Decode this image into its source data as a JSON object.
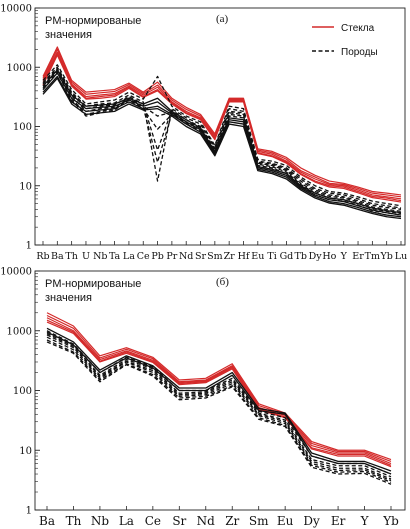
{
  "colors": {
    "glass": "#d42a2a",
    "rock": "#111111",
    "axis": "#222222"
  },
  "chart_data": [
    {
      "type": "line",
      "panel_label": "(а)",
      "ylabel_lines": [
        "PM-нормированые",
        "значения"
      ],
      "yscale": "log",
      "ylim": [
        1,
        10000
      ],
      "yticks": [
        1,
        10,
        100,
        1000,
        10000
      ],
      "ytick_labels": [
        "1",
        "10",
        "100",
        "1000",
        "10000"
      ],
      "categories": [
        "Rb",
        "Ba",
        "Th",
        "U",
        "Nb",
        "Ta",
        "La",
        "Ce",
        "Pb",
        "Pr",
        "Nd",
        "Sr",
        "Sm",
        "Zr",
        "Hf",
        "Eu",
        "Ti",
        "Gd",
        "Tb",
        "Dy",
        "Ho",
        "Y",
        "Er",
        "Tm",
        "Yb",
        "Lu"
      ],
      "legend": {
        "position": "top-right",
        "entries": [
          {
            "label": "Стекла",
            "style": "solid",
            "color": "#d42a2a"
          },
          {
            "label": "Породы",
            "style": "dashed",
            "color": "#111111"
          }
        ]
      },
      "series": [
        {
          "group": "glass",
          "style": "solid",
          "values": [
            700,
            2200,
            600,
            380,
            400,
            420,
            540,
            380,
            560,
            300,
            210,
            160,
            75,
            300,
            300,
            42,
            38,
            30,
            20,
            15,
            12,
            11,
            9.5,
            8,
            7.5,
            7
          ]
        },
        {
          "group": "glass",
          "style": "solid",
          "values": [
            650,
            2000,
            560,
            350,
            370,
            390,
            510,
            360,
            500,
            280,
            195,
            150,
            70,
            290,
            290,
            40,
            36,
            28,
            18,
            14,
            11,
            10.5,
            9,
            7.5,
            7,
            6.5
          ]
        },
        {
          "group": "glass",
          "style": "solid",
          "values": [
            600,
            1800,
            520,
            320,
            340,
            360,
            480,
            340,
            460,
            260,
            180,
            140,
            66,
            280,
            280,
            38,
            34,
            26,
            17,
            13,
            10.5,
            10,
            8.5,
            7,
            6.5,
            6
          ]
        },
        {
          "group": "glass",
          "style": "solid",
          "values": [
            550,
            1700,
            500,
            300,
            320,
            340,
            460,
            320,
            420,
            250,
            170,
            135,
            62,
            270,
            270,
            36,
            32,
            25,
            16,
            12,
            10,
            9.5,
            8,
            6.6,
            6.2,
            5.6
          ]
        },
        {
          "group": "glass",
          "style": "solid",
          "values": [
            500,
            1600,
            480,
            290,
            300,
            320,
            440,
            310,
            400,
            240,
            165,
            130,
            60,
            260,
            260,
            35,
            31,
            24,
            15.5,
            11.5,
            9.5,
            9,
            7.6,
            6.3,
            5.8,
            5.3
          ]
        },
        {
          "group": "rock",
          "style": "dashed",
          "values": [
            600,
            1100,
            420,
            240,
            260,
            280,
            380,
            290,
            700,
            220,
            150,
            120,
            48,
            220,
            200,
            28,
            26,
            22,
            14,
            10,
            8,
            7.5,
            6.5,
            5.5,
            5,
            4.6
          ]
        },
        {
          "group": "rock",
          "style": "dashed",
          "values": [
            550,
            1000,
            380,
            220,
            240,
            250,
            340,
            260,
            12,
            200,
            140,
            110,
            45,
            200,
            180,
            26,
            24,
            20,
            13,
            9,
            7.5,
            7,
            6,
            5,
            4.6,
            4.2
          ]
        },
        {
          "group": "rock",
          "style": "dashed",
          "values": [
            520,
            950,
            360,
            200,
            220,
            230,
            320,
            240,
            40,
            190,
            130,
            100,
            42,
            180,
            170,
            25,
            23,
            19,
            12,
            8.5,
            7,
            6.5,
            5.6,
            4.7,
            4.3,
            4
          ]
        },
        {
          "group": "rock",
          "style": "dashed",
          "values": [
            480,
            900,
            330,
            180,
            200,
            210,
            300,
            220,
            150,
            175,
            120,
            95,
            40,
            170,
            160,
            24,
            22,
            18,
            11,
            8,
            6.6,
            6.2,
            5.3,
            4.4,
            4,
            3.7
          ]
        },
        {
          "group": "rock",
          "style": "dashed",
          "values": [
            450,
            850,
            300,
            160,
            180,
            200,
            290,
            210,
            25,
            165,
            115,
            90,
            38,
            160,
            150,
            23,
            21,
            17,
            10.5,
            7.5,
            6.2,
            5.8,
            5,
            4.1,
            3.7,
            3.4
          ]
        },
        {
          "group": "rock",
          "style": "dashed",
          "values": [
            420,
            800,
            280,
            150,
            170,
            190,
            280,
            200,
            90,
            160,
            110,
            85,
            36,
            150,
            140,
            22,
            20,
            16,
            10,
            7,
            5.8,
            5.5,
            4.7,
            3.8,
            3.5,
            3.2
          ]
        },
        {
          "group": "rock",
          "style": "solid",
          "values": [
            480,
            900,
            340,
            220,
            230,
            240,
            300,
            240,
            300,
            180,
            130,
            95,
            38,
            140,
            130,
            21,
            19,
            16,
            10,
            7.5,
            6.2,
            5.8,
            5,
            4.2,
            3.8,
            3.5
          ]
        },
        {
          "group": "rock",
          "style": "solid",
          "values": [
            420,
            800,
            300,
            200,
            210,
            220,
            280,
            220,
            260,
            170,
            120,
            88,
            36,
            130,
            120,
            20,
            18,
            15,
            9.5,
            7,
            5.8,
            5.4,
            4.6,
            3.9,
            3.5,
            3.2
          ]
        },
        {
          "group": "rock",
          "style": "solid",
          "values": [
            380,
            700,
            260,
            180,
            190,
            200,
            260,
            200,
            220,
            160,
            110,
            80,
            34,
            120,
            110,
            19,
            17,
            14,
            9,
            6.6,
            5.4,
            5,
            4.3,
            3.6,
            3.2,
            3
          ]
        },
        {
          "group": "rock",
          "style": "solid",
          "values": [
            350,
            650,
            240,
            160,
            170,
            180,
            240,
            190,
            200,
            150,
            100,
            75,
            32,
            110,
            100,
            18,
            16,
            13,
            8.5,
            6.2,
            5.1,
            4.7,
            4,
            3.4,
            3,
            2.8
          ]
        }
      ]
    },
    {
      "type": "line",
      "panel_label": "(б)",
      "ylabel_lines": [
        "PM-нормированые",
        "значения"
      ],
      "yscale": "log",
      "ylim": [
        1,
        10000
      ],
      "yticks": [
        1,
        10,
        100,
        1000,
        10000
      ],
      "ytick_labels": [
        "1",
        "10",
        "100",
        "1000",
        "10000"
      ],
      "categories": [
        "Ba",
        "Th",
        "Nb",
        "La",
        "Ce",
        "Sr",
        "Nd",
        "Zr",
        "Sm",
        "Eu",
        "Dy",
        "Er",
        "Y",
        "Yb"
      ],
      "series": [
        {
          "group": "glass",
          "style": "solid",
          "values": [
            2000,
            1200,
            380,
            520,
            360,
            150,
            160,
            280,
            60,
            42,
            14,
            10,
            10,
            7
          ]
        },
        {
          "group": "glass",
          "style": "solid",
          "values": [
            1800,
            1100,
            350,
            490,
            340,
            140,
            150,
            260,
            56,
            40,
            13,
            9.5,
            9.5,
            6.5
          ]
        },
        {
          "group": "glass",
          "style": "solid",
          "values": [
            1650,
            1000,
            330,
            460,
            320,
            135,
            145,
            250,
            52,
            38,
            12,
            9,
            9,
            6
          ]
        },
        {
          "group": "glass",
          "style": "solid",
          "values": [
            1500,
            950,
            310,
            440,
            305,
            130,
            140,
            240,
            50,
            36,
            11,
            8.5,
            8.5,
            5.6
          ]
        },
        {
          "group": "glass",
          "style": "solid",
          "values": [
            1400,
            900,
            300,
            420,
            295,
            125,
            135,
            230,
            48,
            35,
            10.5,
            8,
            8,
            5.3
          ]
        },
        {
          "group": "rock",
          "style": "dashed",
          "values": [
            1000,
            600,
            200,
            360,
            250,
            100,
            100,
            160,
            45,
            35,
            8,
            6,
            6,
            4
          ]
        },
        {
          "group": "rock",
          "style": "dashed",
          "values": [
            900,
            550,
            180,
            330,
            230,
            90,
            95,
            150,
            42,
            32,
            7,
            5.5,
            5.5,
            3.6
          ]
        },
        {
          "group": "rock",
          "style": "dashed",
          "values": [
            850,
            520,
            170,
            310,
            215,
            85,
            90,
            140,
            40,
            30,
            6.5,
            5,
            5,
            3.3
          ]
        },
        {
          "group": "rock",
          "style": "dashed",
          "values": [
            780,
            480,
            160,
            300,
            200,
            80,
            85,
            130,
            38,
            28,
            6,
            4.6,
            4.7,
            3.1
          ]
        },
        {
          "group": "rock",
          "style": "dashed",
          "values": [
            700,
            440,
            150,
            280,
            185,
            75,
            80,
            120,
            35,
            26,
            5.6,
            4.3,
            4.4,
            2.9
          ]
        },
        {
          "group": "rock",
          "style": "dashed",
          "values": [
            650,
            420,
            140,
            270,
            175,
            70,
            75,
            115,
            33,
            25,
            5.2,
            4,
            4.1,
            2.7
          ]
        },
        {
          "group": "rock",
          "style": "solid",
          "values": [
            1100,
            650,
            220,
            380,
            260,
            110,
            110,
            200,
            50,
            42,
            9,
            6.5,
            6.5,
            4.5
          ]
        },
        {
          "group": "rock",
          "style": "solid",
          "values": [
            950,
            580,
            200,
            350,
            240,
            100,
            100,
            180,
            46,
            40,
            8,
            6,
            6,
            4
          ]
        }
      ]
    }
  ]
}
